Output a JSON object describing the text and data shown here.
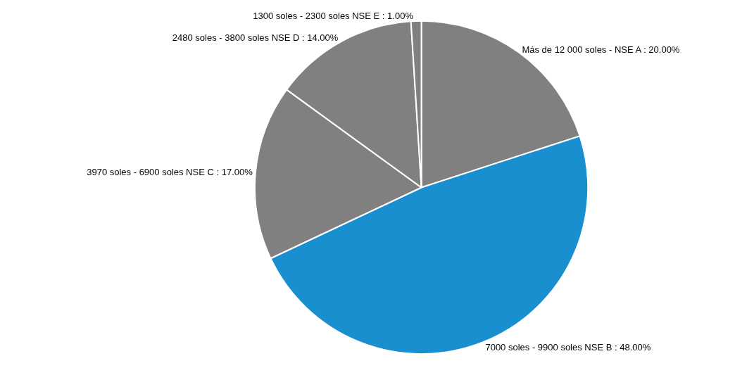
{
  "chart_data": {
    "type": "pie",
    "categories": [
      "Más de 12 000 soles - NSE A",
      "7000 soles - 9900 soles NSE B",
      "3970 soles - 6900 soles NSE C",
      "2480 soles - 3800 soles NSE D",
      "1300 soles - 2300 soles NSE E"
    ],
    "values": [
      20,
      48,
      17,
      14,
      1
    ],
    "value_labels": [
      "20.00%",
      "48.00%",
      "17.00%",
      "14.00%",
      "1.00%"
    ],
    "colors": [
      "#808080",
      "#1a8fd0",
      "#808080",
      "#808080",
      "#808080"
    ],
    "legend": false
  }
}
